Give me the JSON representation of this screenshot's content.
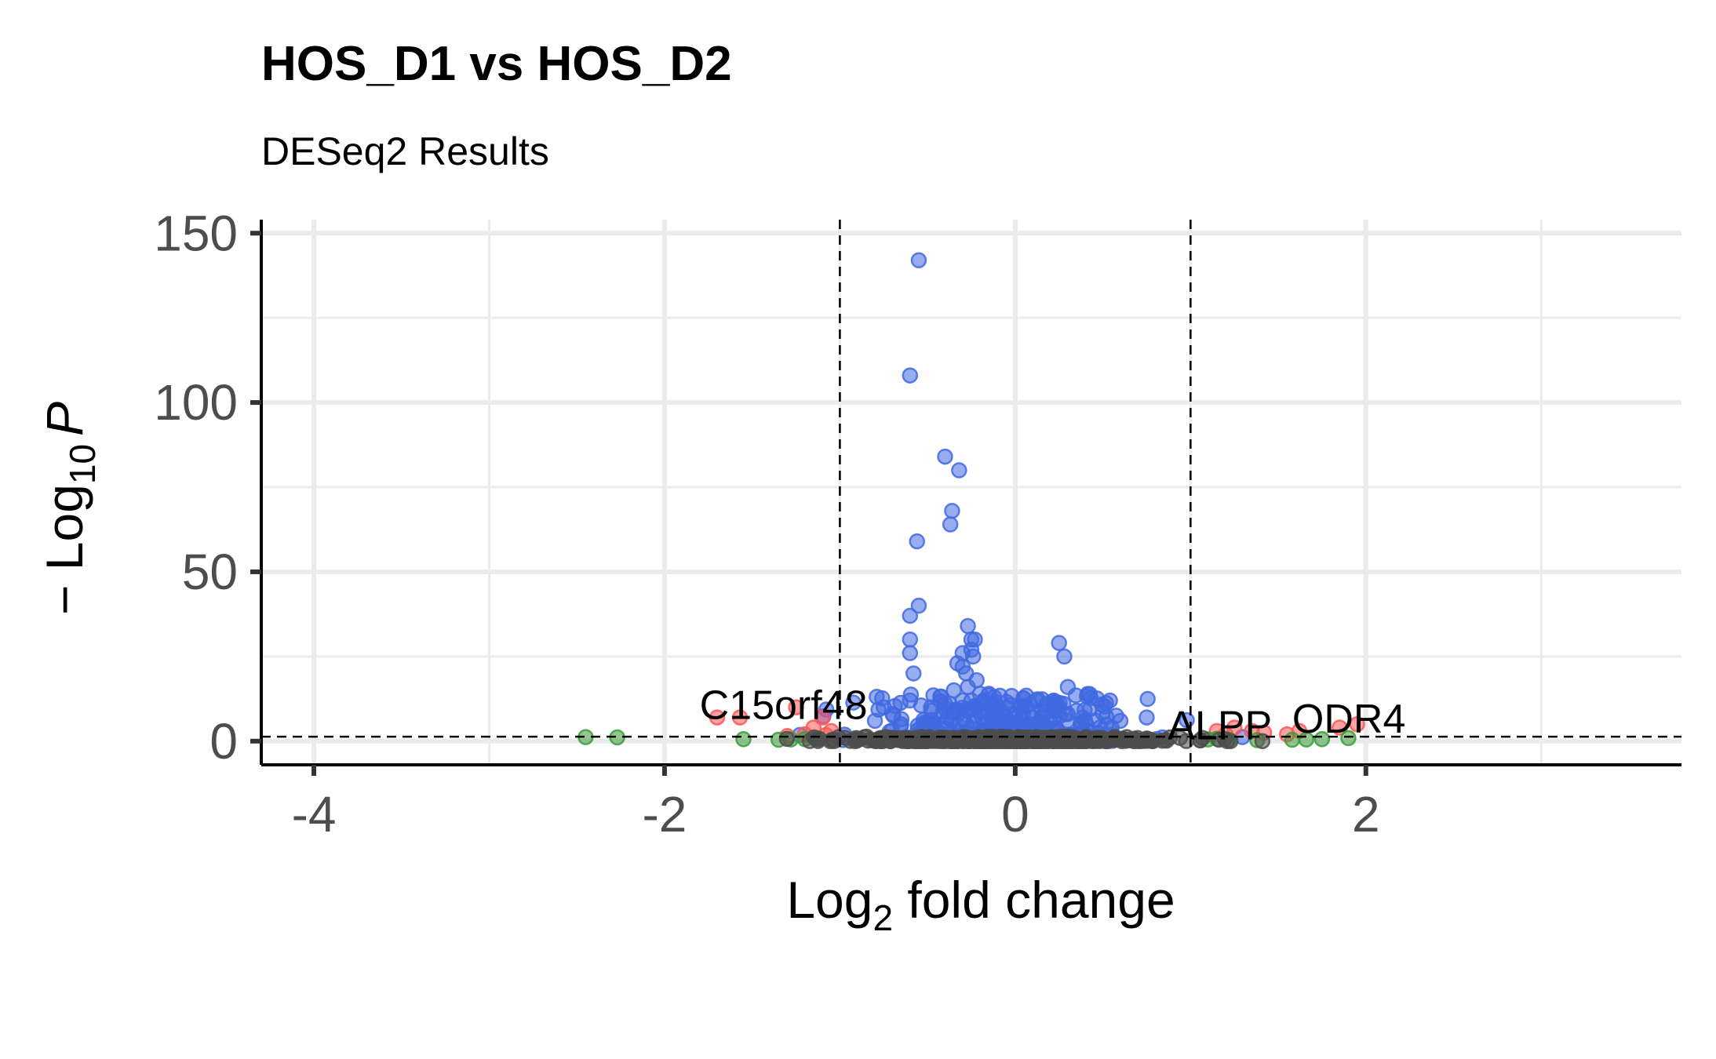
{
  "chart_data": {
    "type": "scatter",
    "title": "HOS_D1 vs HOS_D2",
    "subtitle": "DESeq2 Results",
    "xlabel": {
      "prefix": "Log",
      "sub": "2",
      "suffix": " fold change"
    },
    "ylabel": {
      "prefix": "− Log",
      "sub": "10",
      "suffix": "P"
    },
    "xlim": [
      -4.3,
      3.8
    ],
    "ylim": [
      -7,
      154
    ],
    "x_ticks": [
      -4,
      -2,
      0,
      2
    ],
    "x_tick_labels": [
      "-4",
      "-2",
      "0",
      "2"
    ],
    "y_ticks": [
      0,
      50,
      100,
      150
    ],
    "y_tick_labels": [
      "0",
      "50",
      "100",
      "150"
    ],
    "grid": true,
    "fc_cutoffs": [
      -1,
      1
    ],
    "p_cutoff_y": 1.3,
    "series": [
      {
        "color": "#4169e1",
        "points": [
          [
            -0.55,
            142
          ],
          [
            -0.6,
            108
          ],
          [
            -0.4,
            84
          ],
          [
            -0.32,
            80
          ],
          [
            -0.36,
            68
          ],
          [
            -0.37,
            64
          ],
          [
            -0.56,
            59
          ],
          [
            -0.55,
            40
          ],
          [
            -0.6,
            37
          ],
          [
            -0.6,
            30
          ],
          [
            -0.6,
            26
          ],
          [
            -0.58,
            20
          ],
          [
            -0.27,
            34
          ],
          [
            -0.25,
            30
          ],
          [
            -0.23,
            30
          ],
          [
            -0.25,
            27
          ],
          [
            -0.3,
            26
          ],
          [
            -0.24,
            25
          ],
          [
            -0.33,
            23
          ],
          [
            -0.3,
            22
          ],
          [
            -0.28,
            20
          ],
          [
            0.25,
            29
          ],
          [
            0.28,
            25
          ],
          [
            0.3,
            16
          ],
          [
            -0.35,
            15
          ],
          [
            -0.27,
            16
          ],
          [
            -0.22,
            18
          ],
          [
            -0.2,
            14
          ],
          [
            -0.15,
            14
          ],
          [
            -0.6,
            12
          ],
          [
            -0.4,
            11
          ],
          [
            -0.48,
            10
          ],
          [
            -0.3,
            12
          ],
          [
            -0.25,
            12
          ],
          [
            -0.22,
            10
          ],
          [
            -0.18,
            12
          ],
          [
            -0.12,
            13
          ],
          [
            -0.1,
            9
          ],
          [
            -0.05,
            6
          ],
          [
            0.12,
            12
          ],
          [
            0.18,
            11
          ],
          [
            0.22,
            12
          ],
          [
            0.25,
            10
          ],
          [
            0.3,
            8
          ],
          [
            0.35,
            9
          ],
          [
            0.4,
            6
          ],
          [
            0.15,
            9
          ],
          [
            0.1,
            7
          ],
          [
            0.2,
            6
          ],
          [
            0.05,
            5
          ],
          [
            -0.7,
            8
          ],
          [
            -0.75,
            10
          ],
          [
            -0.8,
            6
          ],
          [
            -0.65,
            5
          ],
          [
            0.6,
            6
          ],
          [
            0.75,
            7
          ],
          [
            0.55,
            4
          ],
          [
            -0.02,
            4
          ],
          [
            0.02,
            3
          ]
        ],
        "cluster": {
          "count": 380,
          "x_mean": -0.1,
          "x_sd": 0.35,
          "y_max": 14,
          "seed": 7
        }
      },
      {
        "color": "#ff5555",
        "points": [
          [
            -1.7,
            7
          ],
          [
            -1.57,
            7
          ],
          [
            -1.25,
            10
          ],
          [
            -1.1,
            7
          ],
          [
            -1.15,
            4
          ],
          [
            -1.05,
            3
          ],
          [
            -1.2,
            2
          ],
          [
            -1.3,
            1.5
          ],
          [
            -1.08,
            1.8
          ],
          [
            1.15,
            3
          ],
          [
            1.25,
            4
          ],
          [
            1.35,
            3
          ],
          [
            1.42,
            2.5
          ],
          [
            1.55,
            2
          ],
          [
            1.62,
            3
          ],
          [
            1.95,
            5
          ],
          [
            1.85,
            4
          ],
          [
            1.2,
            2
          ]
        ]
      },
      {
        "color": "#3a9b3a",
        "points": [
          [
            -2.45,
            1.2
          ],
          [
            -2.27,
            1.1
          ],
          [
            -1.55,
            0.6
          ],
          [
            -1.35,
            0.4
          ],
          [
            -1.28,
            0.5
          ],
          [
            -1.2,
            0.6
          ],
          [
            -1.12,
            0.8
          ],
          [
            1.1,
            0.5
          ],
          [
            1.22,
            0.4
          ],
          [
            1.38,
            0.3
          ],
          [
            1.58,
            0.4
          ],
          [
            1.66,
            0.5
          ],
          [
            1.9,
            0.9
          ],
          [
            1.75,
            0.6
          ],
          [
            1.15,
            0.7
          ]
        ]
      },
      {
        "color": "#4d4d4d",
        "cluster": {
          "count": 520,
          "x_mean": 0,
          "x_sd": 0.45,
          "y_max": 1.3,
          "seed": 13
        }
      }
    ],
    "annotations": [
      {
        "text": "C15orf48",
        "x": -1.8,
        "y": 6.5
      },
      {
        "text": "ALPP",
        "x": 0.87,
        "y": 0.5
      },
      {
        "text": "ODR4",
        "x": 1.58,
        "y": 2.5
      }
    ]
  }
}
